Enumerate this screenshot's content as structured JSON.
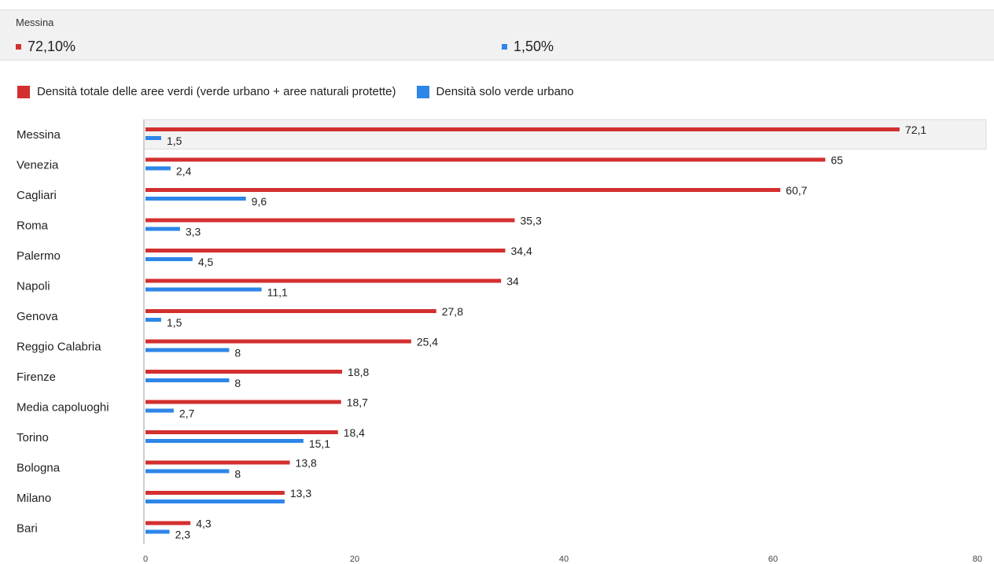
{
  "tooltip": {
    "title": "Messina",
    "value_1": "72,10%",
    "value_2": "1,50%"
  },
  "colors": {
    "series_1": "#d32f2f",
    "series_2": "#2e86e8"
  },
  "chart_data": {
    "type": "bar",
    "orientation": "horizontal",
    "categories": [
      "Messina",
      "Venezia",
      "Cagliari",
      "Roma",
      "Palermo",
      "Napoli",
      "Genova",
      "Reggio Calabria",
      "Firenze",
      "Media capoluoghi",
      "Torino",
      "Bologna",
      "Milano",
      "Bari"
    ],
    "series": [
      {
        "name": "Densità totale delle aree verdi (verde urbano + aree naturali protette)",
        "values": [
          72.1,
          65,
          60.7,
          35.3,
          34.4,
          34,
          27.8,
          25.4,
          18.8,
          18.7,
          18.4,
          13.8,
          13.3,
          4.3
        ],
        "labels": [
          "72,1",
          "65",
          "60,7",
          "35,3",
          "34,4",
          "34",
          "27,8",
          "25,4",
          "18,8",
          "18,7",
          "18,4",
          "13,8",
          "13,3",
          "4,3"
        ]
      },
      {
        "name": "Densità solo verde urbano",
        "values": [
          1.5,
          2.4,
          9.6,
          3.3,
          4.5,
          11.1,
          1.5,
          8,
          8,
          2.7,
          15.1,
          8,
          13.3,
          2.3
        ],
        "labels": [
          "1,5",
          "2,4",
          "9,6",
          "3,3",
          "4,5",
          "11,1",
          "1,5",
          "8",
          "8",
          "2,7",
          "15,1",
          "8",
          "",
          "2,3"
        ]
      }
    ],
    "xlim": [
      0,
      80
    ],
    "xticks": [
      "0",
      "20",
      "40",
      "60",
      "80"
    ],
    "highlighted_category": "Messina",
    "legend_position": "top-left",
    "grid": false
  }
}
